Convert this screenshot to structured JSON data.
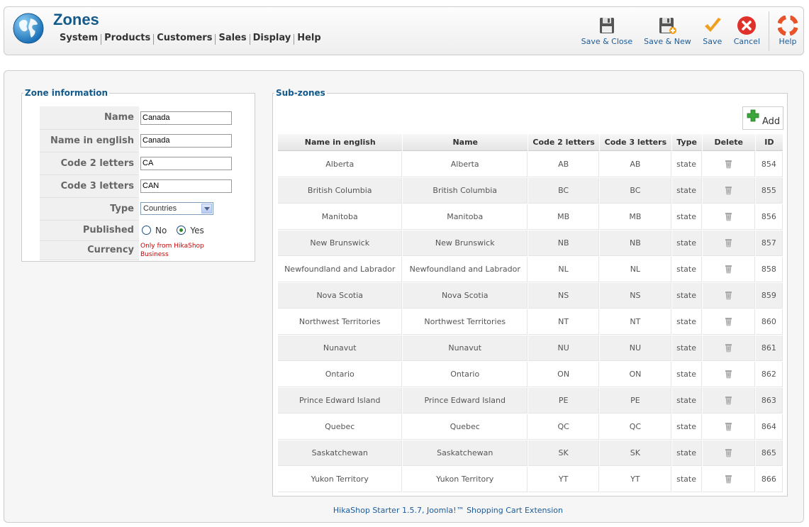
{
  "header": {
    "title": "Zones",
    "menu": [
      "System",
      "Products",
      "Customers",
      "Sales",
      "Display",
      "Help"
    ],
    "toolbar": [
      {
        "label": "Save & Close",
        "icon": "save-icon"
      },
      {
        "label": "Save & New",
        "icon": "save-new-icon"
      },
      {
        "label": "Save",
        "icon": "checkmark-icon"
      },
      {
        "label": "Cancel",
        "icon": "cancel-icon"
      },
      {
        "label": "Help",
        "icon": "lifebuoy-icon"
      }
    ]
  },
  "zone_info": {
    "legend": "Zone information",
    "name_label": "Name",
    "name_value": "Canada",
    "name_english_label": "Name in english",
    "name_english_value": "Canada",
    "code2_label": "Code 2 letters",
    "code2_value": "CA",
    "code3_label": "Code 3 letters",
    "code3_value": "CAN",
    "type_label": "Type",
    "type_value": "Countries",
    "published_label": "Published",
    "published_no": "No",
    "published_yes": "Yes",
    "currency_label": "Currency",
    "currency_note": "Only from HikaShop Business"
  },
  "subzones": {
    "legend": "Sub-zones",
    "add_label": "Add",
    "columns": [
      "Name in english",
      "Name",
      "Code 2 letters",
      "Code 3 letters",
      "Type",
      "Delete",
      "ID"
    ],
    "rows": [
      [
        "Alberta",
        "Alberta",
        "AB",
        "AB",
        "state",
        "854"
      ],
      [
        "British Columbia",
        "British Columbia",
        "BC",
        "BC",
        "state",
        "855"
      ],
      [
        "Manitoba",
        "Manitoba",
        "MB",
        "MB",
        "state",
        "856"
      ],
      [
        "New Brunswick",
        "New Brunswick",
        "NB",
        "NB",
        "state",
        "857"
      ],
      [
        "Newfoundland and Labrador",
        "Newfoundland and Labrador",
        "NL",
        "NL",
        "state",
        "858"
      ],
      [
        "Nova Scotia",
        "Nova Scotia",
        "NS",
        "NS",
        "state",
        "859"
      ],
      [
        "Northwest Territories",
        "Northwest Territories",
        "NT",
        "NT",
        "state",
        "860"
      ],
      [
        "Nunavut",
        "Nunavut",
        "NU",
        "NU",
        "state",
        "861"
      ],
      [
        "Ontario",
        "Ontario",
        "ON",
        "ON",
        "state",
        "862"
      ],
      [
        "Prince Edward Island",
        "Prince Edward Island",
        "PE",
        "PE",
        "state",
        "863"
      ],
      [
        "Quebec",
        "Quebec",
        "QC",
        "QC",
        "state",
        "864"
      ],
      [
        "Saskatchewan",
        "Saskatchewan",
        "SK",
        "SK",
        "state",
        "865"
      ],
      [
        "Yukon Territory",
        "Yukon Territory",
        "YT",
        "YT",
        "state",
        "866"
      ]
    ]
  },
  "footer": "HikaShop Starter 1.5.7, Joomla!™ Shopping Cart Extension"
}
